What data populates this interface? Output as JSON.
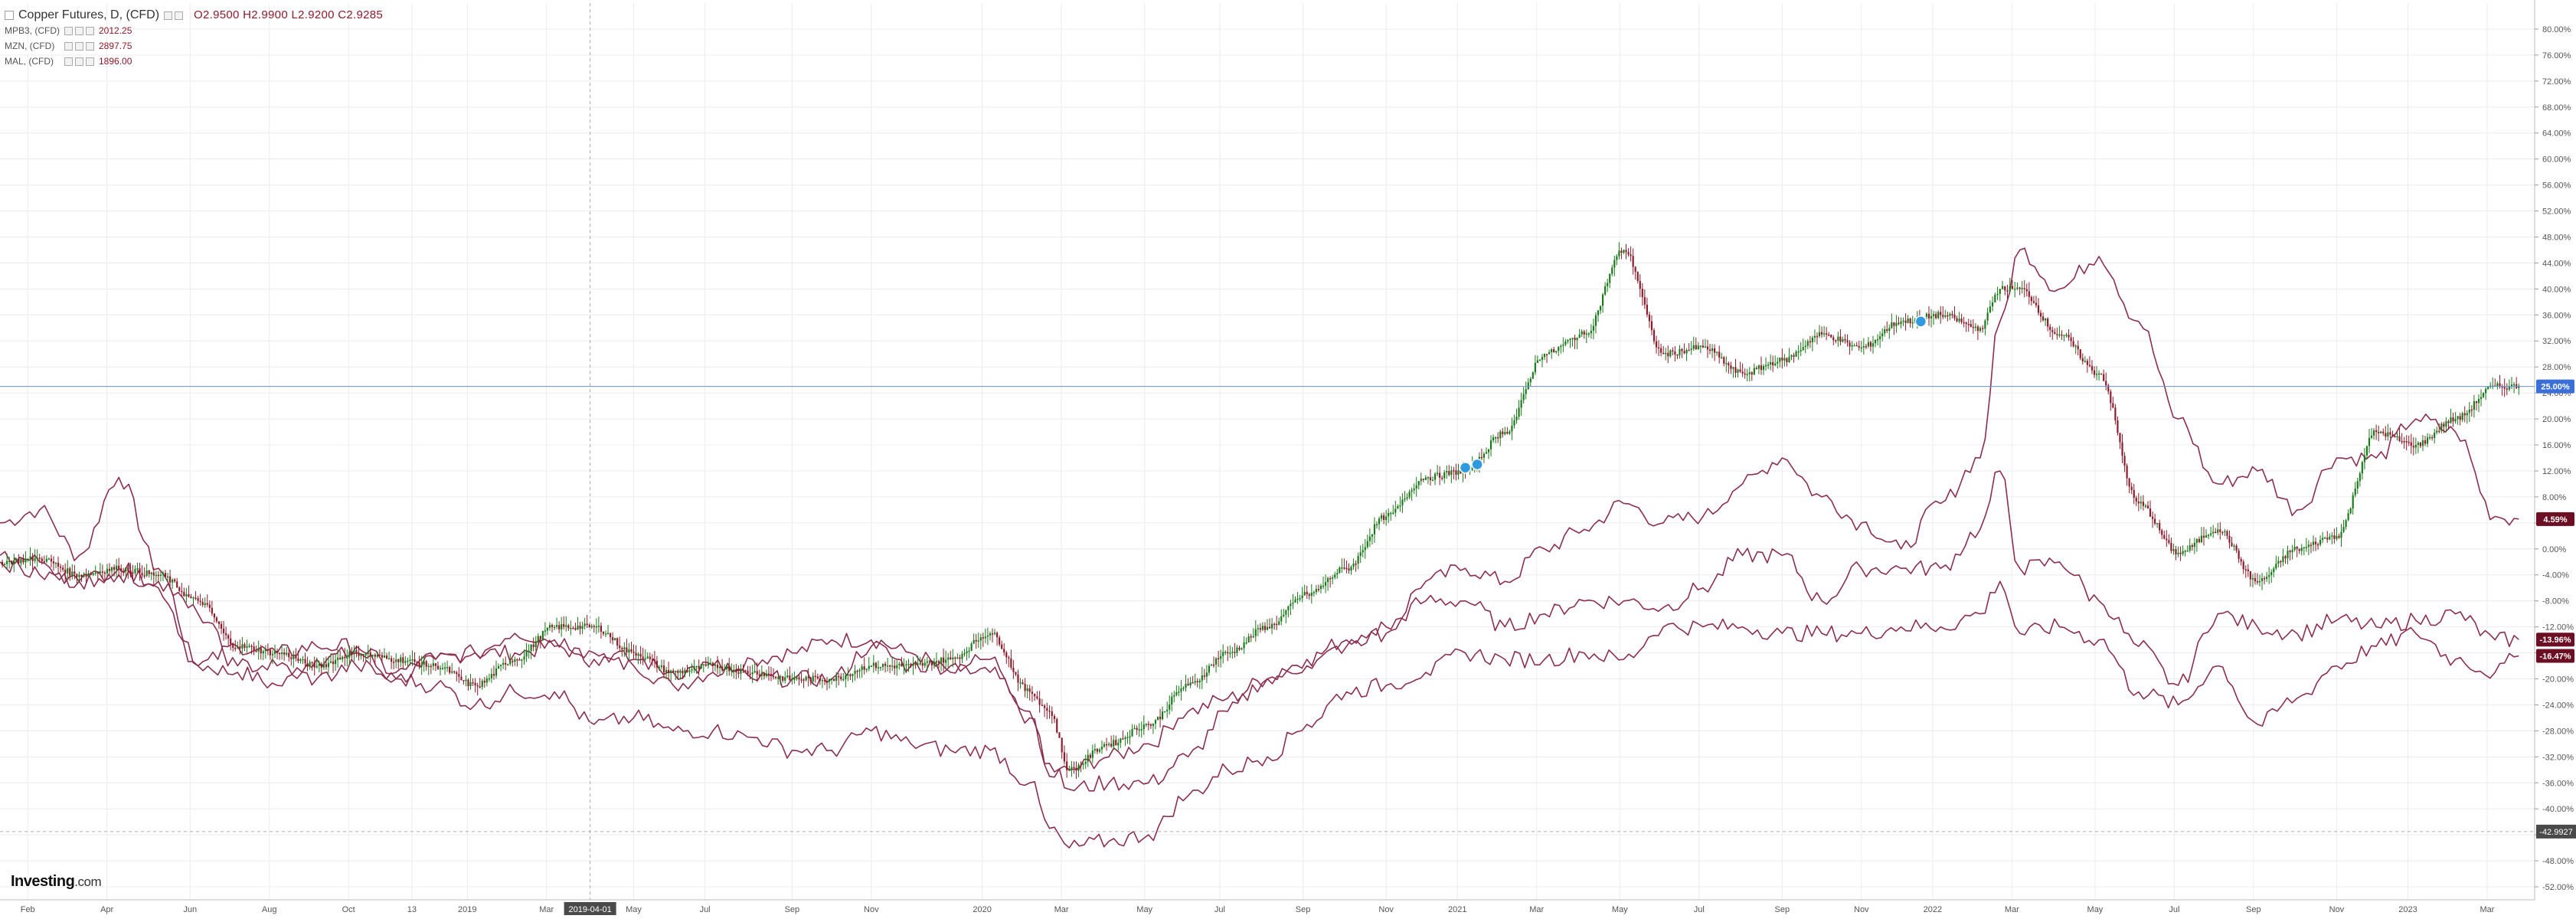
{
  "legend": {
    "main": {
      "title": "Copper Futures, D, (CFD)",
      "ohlc": "O2.9500  H2.9900  L2.9200  C2.9285"
    },
    "series": [
      {
        "symbol": "MPB3, (CFD)",
        "value": "2012.25"
      },
      {
        "symbol": "MZN, (CFD)",
        "value": "2897.75"
      },
      {
        "symbol": "MAL, (CFD)",
        "value": "1896.00"
      }
    ]
  },
  "brand": {
    "name": "Investing",
    "suffix": ".com"
  },
  "colors": {
    "up": "#1a7a1a",
    "down": "#8b1a2b",
    "line": "#8b2f4f",
    "hline": "#6a8fd0",
    "badge_blue": "#3a6fd8",
    "badge_dark": "#6d0f24",
    "grid": "#ececec"
  },
  "chart_data": {
    "type": "line",
    "y_unit": "%",
    "y_ticks": [
      "80.00%",
      "76.00%",
      "72.00%",
      "68.00%",
      "64.00%",
      "60.00%",
      "56.00%",
      "52.00%",
      "48.00%",
      "44.00%",
      "40.00%",
      "36.00%",
      "32.00%",
      "28.00%",
      "24.00%",
      "20.00%",
      "16.00%",
      "12.00%",
      "8.00%",
      "4.00%",
      "0.00%",
      "-4.00%",
      "-8.00%",
      "-12.00%",
      "-16.00%",
      "-20.00%",
      "-24.00%",
      "-28.00%",
      "-32.00%",
      "-36.00%",
      "-40.00%",
      "-44.00%",
      "-48.00%",
      "-52.00%"
    ],
    "ylim": [
      -54,
      84
    ],
    "x_ticks": [
      "Feb",
      "Apr",
      "Jun",
      "Aug",
      "Oct",
      "13",
      "2019",
      "Mar",
      "2019-04-01",
      "May",
      "Jul",
      "Sep",
      "Nov",
      "2020",
      "Mar",
      "May",
      "Jul",
      "Sep",
      "Nov",
      "2021",
      "Mar",
      "May",
      "Jul",
      "Sep",
      "Nov",
      "2022",
      "Mar",
      "May",
      "Jul",
      "Sep",
      "Nov",
      "2023",
      "Mar"
    ],
    "x_tick_positions": [
      0.7,
      2.7,
      4.8,
      6.8,
      8.8,
      10.4,
      11.8,
      13.8,
      14.9,
      16.0,
      17.8,
      20.0,
      22.0,
      24.8,
      26.8,
      28.9,
      30.8,
      32.9,
      35.0,
      36.8,
      38.8,
      40.9,
      42.9,
      45.0,
      47.0,
      48.8,
      50.8,
      52.9,
      54.9,
      56.9,
      59.0,
      60.8,
      62.8
    ],
    "xlim": [
      0,
      64
    ],
    "crosshair": {
      "x": 14.9,
      "date_label": "2019-04-01",
      "y": -43.5,
      "value_label": "-42.9927"
    },
    "reference_line": {
      "y": 25.0
    },
    "badges": [
      "25.00%",
      "4.59%",
      "-13.96%",
      "-16.47%"
    ],
    "badge_values": [
      25.0,
      4.59,
      -13.96,
      -16.47
    ],
    "series": [
      {
        "name": "Copper Futures, D, (CFD)",
        "style": "candles",
        "x": [
          0,
          1,
          2,
          3,
          4,
          5,
          6,
          7,
          8,
          9,
          10,
          11,
          12,
          13,
          14,
          15,
          16,
          17,
          18,
          19,
          20,
          21,
          22,
          23,
          24,
          25,
          26,
          26.5,
          27,
          28,
          29,
          30,
          31,
          32,
          33,
          34,
          35,
          36,
          37,
          38,
          39,
          40,
          41,
          42,
          43,
          44,
          45,
          46,
          47,
          48,
          49,
          50,
          50.5,
          51,
          52,
          53,
          54,
          55,
          56,
          57,
          58,
          59,
          60,
          61,
          62,
          63,
          63.6
        ],
        "y": [
          -2,
          -1.5,
          -4,
          -3,
          -4,
          -8,
          -15,
          -16,
          -18,
          -16,
          -17,
          -18,
          -21,
          -17,
          -12,
          -12,
          -16,
          -19,
          -18,
          -19,
          -20,
          -20,
          -18,
          -18,
          -17,
          -13,
          -22,
          -25,
          -34,
          -30,
          -27,
          -21,
          -16,
          -12,
          -7,
          -3,
          5,
          11,
          12,
          18,
          30,
          33,
          46,
          30,
          31,
          27,
          29,
          33,
          31,
          35,
          36,
          34,
          40,
          40,
          33,
          27,
          7,
          -0.6,
          3,
          -5,
          0,
          2,
          18,
          16,
          20,
          25,
          25
        ]
      },
      {
        "name": "MPB3, (CFD)",
        "style": "line",
        "x": [
          0,
          1,
          2,
          3,
          4,
          5,
          6,
          7,
          8,
          9,
          10,
          11,
          12,
          13,
          14,
          15,
          16,
          17,
          18,
          19,
          20,
          21,
          22,
          23,
          24,
          25,
          26,
          26.5,
          27,
          28,
          29,
          30,
          31,
          32,
          33,
          34,
          35,
          36,
          37,
          38,
          39,
          40,
          41,
          42,
          43,
          44,
          45,
          46,
          47,
          48,
          49,
          50,
          50.5,
          51,
          52,
          53,
          54,
          55,
          56,
          57,
          58,
          59,
          60,
          61,
          62,
          63,
          63.6
        ],
        "y": [
          4,
          6,
          -1,
          11,
          -3,
          -18,
          -19,
          -21,
          -17,
          -16,
          -20,
          -17,
          -16,
          -16,
          -15,
          -17,
          -18,
          -21,
          -19,
          -17,
          -16,
          -14,
          -14,
          -16,
          -19,
          -19,
          -26,
          -35,
          -34,
          -32,
          -30,
          -25,
          -23,
          -20,
          -17,
          -14,
          -13,
          -5,
          -3,
          -5,
          0,
          3,
          7,
          4,
          5,
          10,
          14,
          8,
          4,
          0,
          7,
          14,
          35,
          46,
          40,
          45,
          35,
          20,
          10,
          12,
          6,
          14,
          14,
          20,
          18,
          5,
          4.59
        ]
      },
      {
        "name": "MZN, (CFD)",
        "style": "line",
        "x": [
          0,
          1,
          2,
          3,
          4,
          5,
          6,
          7,
          8,
          9,
          10,
          11,
          12,
          13,
          14,
          15,
          16,
          17,
          18,
          19,
          20,
          21,
          22,
          23,
          24,
          25,
          26,
          26.5,
          27,
          28,
          29,
          30,
          31,
          32,
          33,
          34,
          35,
          36,
          37,
          38,
          39,
          40,
          41,
          42,
          43,
          44,
          45,
          46,
          47,
          48,
          49,
          50,
          50.5,
          51,
          52,
          53,
          54,
          55,
          56,
          57,
          58,
          59,
          60,
          61,
          62,
          63,
          63.6
        ],
        "y": [
          -2,
          -4,
          -5,
          -3,
          -6,
          -18,
          -15,
          -16,
          -15,
          -15,
          -19,
          -17,
          -16,
          -13,
          -14,
          -16,
          -17,
          -19,
          -18,
          -20,
          -20,
          -20,
          -15,
          -18,
          -18,
          -17,
          -25,
          -33,
          -37,
          -36,
          -36,
          -32,
          -25,
          -20,
          -18,
          -15,
          -12,
          -8,
          -8,
          -12,
          -10,
          -8,
          -8,
          -9,
          -6,
          -1,
          -1,
          -8,
          -3,
          -3,
          -3,
          3,
          12,
          -3,
          -2,
          -8,
          -15,
          -21,
          -10,
          -12,
          -13,
          -11,
          -12,
          -11,
          -10,
          -14,
          -13.96
        ]
      },
      {
        "name": "MAL, (CFD)",
        "style": "line",
        "x": [
          0,
          1,
          2,
          3,
          4,
          5,
          6,
          7,
          8,
          9,
          10,
          11,
          12,
          13,
          14,
          15,
          16,
          17,
          18,
          19,
          20,
          21,
          22,
          23,
          24,
          25,
          26,
          26.5,
          27,
          28,
          29,
          30,
          31,
          32,
          33,
          34,
          35,
          36,
          37,
          38,
          39,
          40,
          41,
          42,
          43,
          44,
          45,
          46,
          47,
          48,
          49,
          50,
          50.5,
          51,
          52,
          53,
          54,
          55,
          56,
          57,
          58,
          59,
          60,
          61,
          62,
          63,
          63.6
        ],
        "y": [
          -1,
          -2,
          -5,
          -4,
          -5,
          -10,
          -18,
          -18,
          -20,
          -18,
          -20,
          -21,
          -24,
          -22,
          -22,
          -27,
          -26,
          -28,
          -28,
          -29,
          -31,
          -31,
          -28,
          -30,
          -31,
          -31,
          -36,
          -43,
          -46,
          -45,
          -44,
          -38,
          -34,
          -32,
          -27,
          -22,
          -21,
          -19,
          -16,
          -17,
          -17,
          -16,
          -17,
          -12,
          -12,
          -12,
          -13,
          -13,
          -13,
          -12,
          -12,
          -10,
          -5,
          -13,
          -12,
          -14,
          -22,
          -24,
          -18,
          -27,
          -23,
          -18,
          -15,
          -13,
          -17,
          -19,
          -16.47
        ]
      }
    ]
  }
}
